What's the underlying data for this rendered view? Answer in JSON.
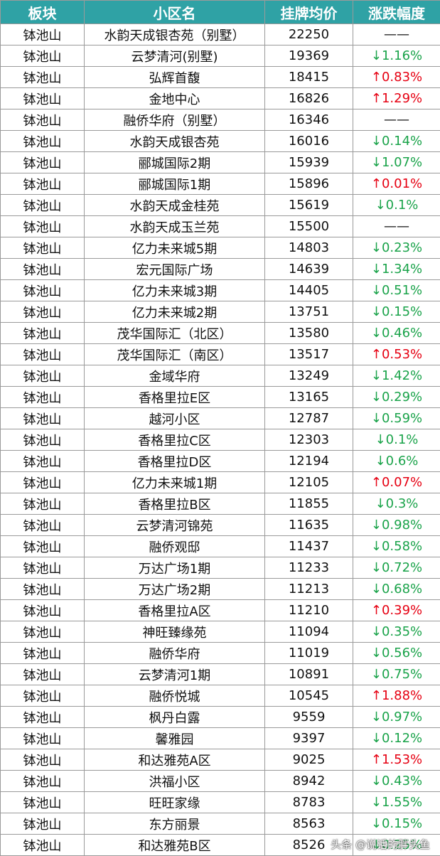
{
  "table": {
    "header": [
      "板块",
      "小区名",
      "挂牌均价",
      "涨跌幅度"
    ],
    "rows": [
      [
        "钵池山",
        "水韵天成银杏苑（别墅）",
        22250,
        "——"
      ],
      [
        "钵池山",
        "云梦清河(别墅)",
        19369,
        "↓1.16%"
      ],
      [
        "钵池山",
        "弘辉首馥",
        18415,
        "↑0.83%"
      ],
      [
        "钵池山",
        "金地中心",
        16826,
        "↑1.29%"
      ],
      [
        "钵池山",
        "融侨华府（别墅）",
        16346,
        "——"
      ],
      [
        "钵池山",
        "水韵天成银杏苑",
        16016,
        "↓0.14%"
      ],
      [
        "钵池山",
        "郦城国际2期",
        15939,
        "↓1.07%"
      ],
      [
        "钵池山",
        "郦城国际1期",
        15896,
        "↑0.01%"
      ],
      [
        "钵池山",
        "水韵天成金桂苑",
        15619,
        "↓0.1%"
      ],
      [
        "钵池山",
        "水韵天成玉兰苑",
        15500,
        "——"
      ],
      [
        "钵池山",
        "亿力未来城5期",
        14803,
        "↓0.23%"
      ],
      [
        "钵池山",
        "宏元国际广场",
        14639,
        "↓1.34%"
      ],
      [
        "钵池山",
        "亿力未来城3期",
        14405,
        "↓0.51%"
      ],
      [
        "钵池山",
        "亿力未来城2期",
        13751,
        "↓0.15%"
      ],
      [
        "钵池山",
        "茂华国际汇（北区）",
        13580,
        "↓0.46%"
      ],
      [
        "钵池山",
        "茂华国际汇（南区）",
        13517,
        "↑0.53%"
      ],
      [
        "钵池山",
        "金域华府",
        13249,
        "↓1.42%"
      ],
      [
        "钵池山",
        "香格里拉E区",
        13165,
        "↓0.29%"
      ],
      [
        "钵池山",
        "越河小区",
        12787,
        "↓0.59%"
      ],
      [
        "钵池山",
        "香格里拉C区",
        12303,
        "↓0.1%"
      ],
      [
        "钵池山",
        "香格里拉D区",
        12194,
        "↓0.6%"
      ],
      [
        "钵池山",
        "亿力未来城1期",
        12105,
        "↑0.07%"
      ],
      [
        "钵池山",
        "香格里拉B区",
        11855,
        "↓0.3%"
      ],
      [
        "钵池山",
        "云梦清河锦苑",
        11635,
        "↓0.98%"
      ],
      [
        "钵池山",
        "融侨观邸",
        11437,
        "↓0.58%"
      ],
      [
        "钵池山",
        "万达广场1期",
        11233,
        "↓0.72%"
      ],
      [
        "钵池山",
        "万达广场2期",
        11213,
        "↓0.68%"
      ],
      [
        "钵池山",
        "香格里拉A区",
        11210,
        "↑0.39%"
      ],
      [
        "钵池山",
        "神旺臻缘苑",
        11094,
        "↓0.35%"
      ],
      [
        "钵池山",
        "融侨华府",
        11019,
        "↓0.56%"
      ],
      [
        "钵池山",
        "云梦清河1期",
        10891,
        "↓0.75%"
      ],
      [
        "钵池山",
        "融侨悦城",
        10545,
        "↑1.88%"
      ],
      [
        "钵池山",
        "枫丹白露",
        9559,
        "↓0.97%"
      ],
      [
        "钵池山",
        "馨雅园",
        9397,
        "↓0.12%"
      ],
      [
        "钵池山",
        "和达雅苑A区",
        9025,
        "↑1.53%"
      ],
      [
        "钵池山",
        "洪福小区",
        8942,
        "↓0.43%"
      ],
      [
        "钵池山",
        "旺旺家缘",
        8783,
        "↓1.55%"
      ],
      [
        "钵池山",
        "东方丽景",
        8563,
        "↓0.15%"
      ],
      [
        "钵池山",
        "和达雅苑B区",
        8526,
        "↓0.25%"
      ]
    ],
    "change_colors": [
      "#111111",
      "#1aa34a",
      "#e60012",
      "#e60012",
      "#111111",
      "#1aa34a",
      "#1aa34a",
      "#e60012",
      "#1aa34a",
      "#111111",
      "#1aa34a",
      "#1aa34a",
      "#1aa34a",
      "#1aa34a",
      "#1aa34a",
      "#e60012",
      "#1aa34a",
      "#1aa34a",
      "#1aa34a",
      "#1aa34a",
      "#1aa34a",
      "#e60012",
      "#1aa34a",
      "#1aa34a",
      "#1aa34a",
      "#1aa34a",
      "#1aa34a",
      "#e60012",
      "#1aa34a",
      "#1aa34a",
      "#1aa34a",
      "#e60012",
      "#1aa34a",
      "#1aa34a",
      "#e60012",
      "#1aa34a",
      "#1aa34a",
      "#1aa34a",
      "#1aa34a"
    ]
  },
  "watermark": "头条 @说话的胖头鱼"
}
